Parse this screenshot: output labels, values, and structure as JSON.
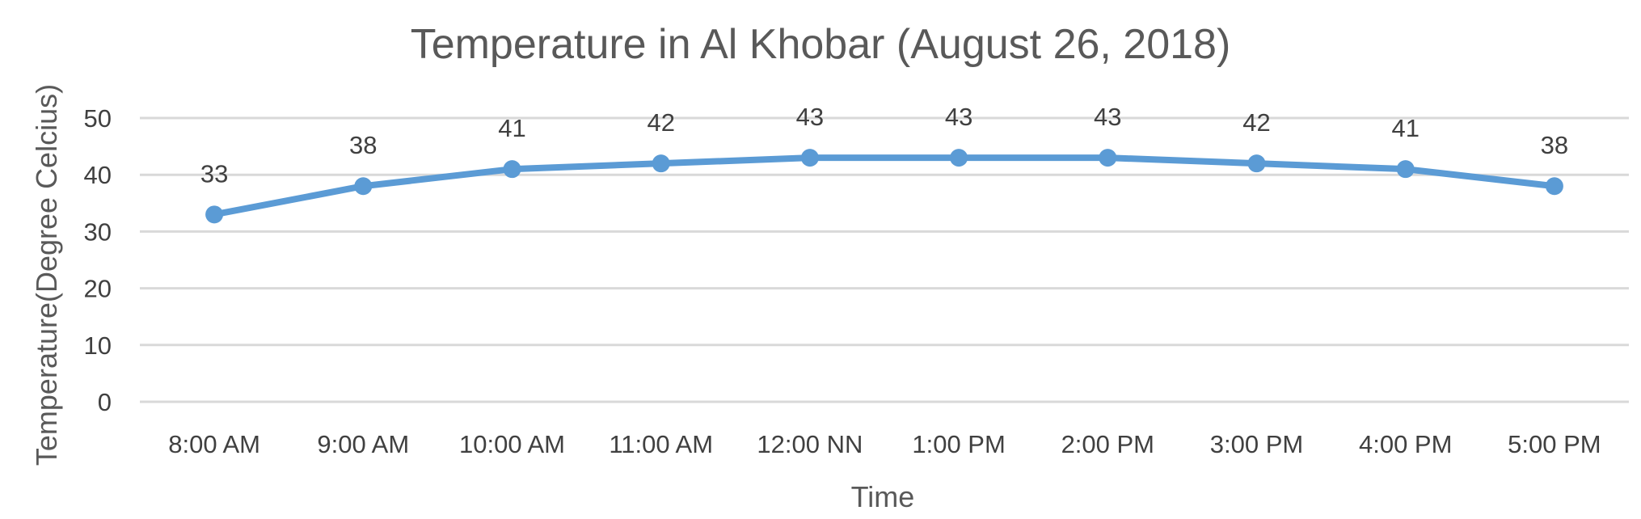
{
  "chart_data": {
    "type": "line",
    "title": "Temperature in Al Khobar (August 26, 2018)",
    "xlabel": "Time",
    "ylabel": "Temperature(Degree Celcius)",
    "categories": [
      "8:00 AM",
      "9:00 AM",
      "10:00 AM",
      "11:00 AM",
      "12:00 NN",
      "1:00 PM",
      "2:00 PM",
      "3:00 PM",
      "4:00 PM",
      "5:00 PM"
    ],
    "series": [
      {
        "values": [
          33,
          38,
          41,
          42,
          43,
          43,
          43,
          42,
          41,
          38
        ]
      }
    ],
    "ylim": [
      0,
      50
    ],
    "yticks": [
      0,
      10,
      20,
      30,
      40,
      50
    ],
    "grid": true,
    "legend": "none",
    "data_labels": true,
    "colors": {
      "series": "#5b9bd5",
      "grid": "#d9d9d9",
      "text": "#595959"
    }
  }
}
